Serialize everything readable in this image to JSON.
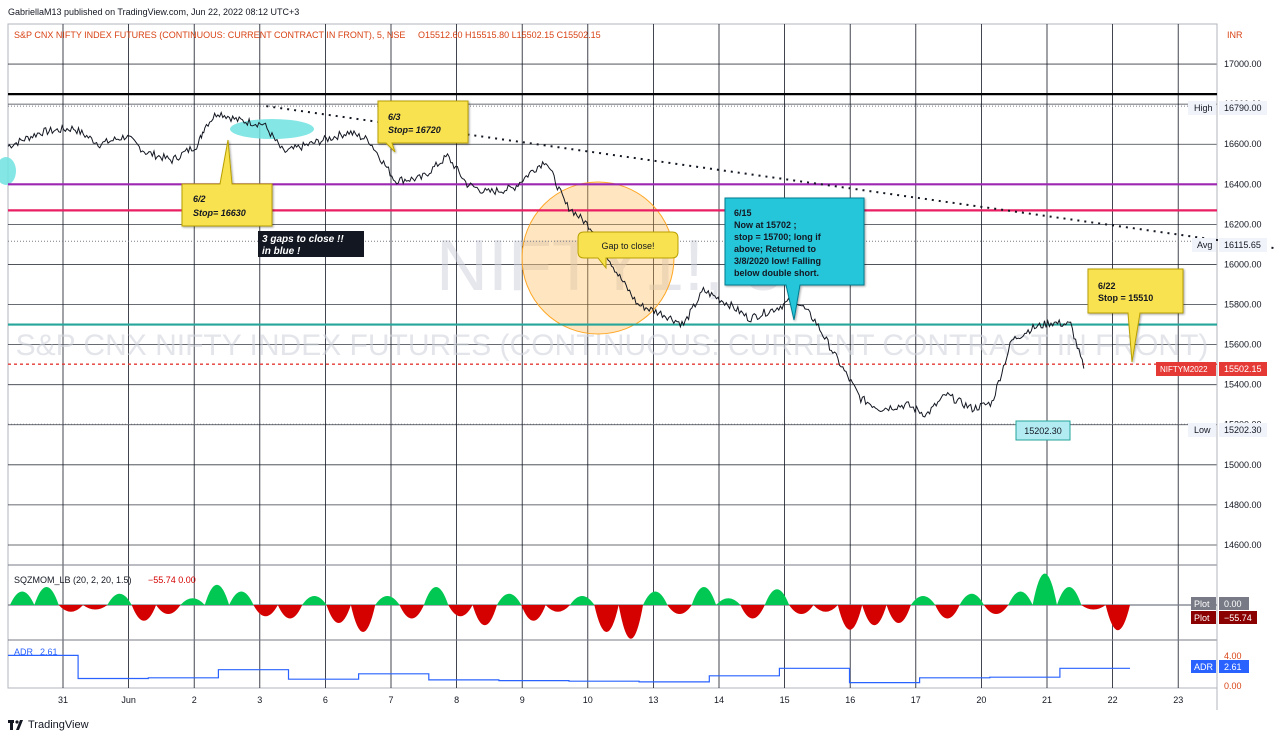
{
  "header": {
    "published": "GabriellaM13 published on TradingView.com, Jun 22, 2022 08:12 UTC+3",
    "symbol_line": "S&P CNX NIFTY INDEX FUTURES (CONTINUOUS: CURRENT CONTRACT IN FRONT), 5, NSE",
    "ohlc": "O15512.60  H15515.80  L15502.15  C15502.15"
  },
  "watermark": {
    "ticker": "NIFTY1!, 5",
    "description": "S&P CNX NIFTY INDEX FUTURES (CONTINUOUS: CURRENT CONTRACT IN FRONT)"
  },
  "currency": "INR",
  "footer_brand": "TradingView",
  "colors": {
    "price_line": "#131722",
    "resistance_black": "#000000",
    "purple_line": "#9c27b0",
    "red_line": "#e91e63",
    "teal_line": "#26a69a",
    "current_price": "#e53935",
    "callout_yellow": "#f9e250",
    "callout_cyan": "#26c6da",
    "gap_circle": "#ffb74d",
    "gap_ellipse": "#6fe3e0",
    "mom_green": "#00c853",
    "mom_red": "#d50000",
    "adr_blue": "#2962ff"
  },
  "chart_data": {
    "type": "line",
    "title": "S&P CNX NIFTY INDEX FUTURES (CONTINUOUS: CURRENT CONTRACT IN FRONT), 5, NSE",
    "ylim": [
      14500,
      17200
    ],
    "y_ticks": [
      "17000.00",
      "16800.00",
      "16600.00",
      "16400.00",
      "16200.00",
      "16000.00",
      "15800.00",
      "15600.00",
      "15400.00",
      "15200.00",
      "15000.00",
      "14800.00",
      "14600.00"
    ],
    "x_ticks": [
      "31",
      "Jun",
      "2",
      "3",
      "6",
      "7",
      "8",
      "9",
      "10",
      "13",
      "14",
      "15",
      "16",
      "17",
      "20",
      "21",
      "22",
      "23"
    ],
    "price_series": {
      "x": [
        0,
        0.5,
        1,
        1.4,
        1.8,
        2.1,
        2.5,
        2.9,
        3.0,
        3.2,
        3.5,
        3.9,
        4.2,
        4.6,
        5.0,
        5.2,
        5.5,
        5.9,
        6.3,
        6.7,
        7.0,
        7.3,
        7.7,
        8.0,
        8.2,
        8.5,
        8.9,
        9.0,
        9.3,
        9.6,
        10.0,
        10.3,
        10.6,
        11.0,
        11.3,
        11.7,
        12.0,
        12.3,
        12.6,
        13.0,
        13.3,
        13.7,
        14.0,
        14.3,
        14.7,
        15.0,
        15.3,
        15.6,
        15.9,
        16.2,
        16.4
      ],
      "y": [
        16590,
        16660,
        16680,
        16600,
        16640,
        16560,
        16520,
        16600,
        16690,
        16760,
        16720,
        16700,
        16560,
        16600,
        16640,
        16660,
        16620,
        16420,
        16430,
        16540,
        16400,
        16360,
        16380,
        16470,
        16520,
        16300,
        16180,
        16120,
        15950,
        15800,
        15750,
        15700,
        15870,
        15800,
        15730,
        15780,
        15830,
        15720,
        15550,
        15330,
        15280,
        15300,
        15250,
        15350,
        15280,
        15310,
        15620,
        15680,
        15710,
        15700,
        15480
      ]
    },
    "horizontal_levels": [
      {
        "name": "resistance",
        "value": 16850
      },
      {
        "name": "High",
        "value": 16790.0
      },
      {
        "name": "purple",
        "value": 16400
      },
      {
        "name": "red",
        "value": 16270
      },
      {
        "name": "Avg",
        "value": 16115.65
      },
      {
        "name": "teal",
        "value": 15700
      },
      {
        "name": "NIFTYM2022",
        "value": 15502.15
      },
      {
        "name": "Low",
        "value": 15202.3
      }
    ],
    "trendline": {
      "from": {
        "x": 3.1,
        "y": 16790
      },
      "to": {
        "x": 18.5,
        "y": 16080
      }
    },
    "price_labels": {
      "high_label": "High",
      "high_value": "16790.00",
      "avg_label": "Avg",
      "avg_value": "16115.65",
      "current_label": "NIFTYM2022",
      "current_value": "15502.15",
      "low_label": "Low",
      "low_value": "15202.30",
      "low_marker": "15202.30"
    },
    "annotations": [
      {
        "id": "a62",
        "text": "6/2\nStop= 16630"
      },
      {
        "id": "a63",
        "text": "6/3\nStop= 16720"
      },
      {
        "id": "a615",
        "text": "6/15\n  Now at 15702 ;\n stop = 15700; long if\n above; Returned to\n 3/8/2020 low! Falling\n below double short."
      },
      {
        "id": "a622",
        "text": "6/22\nStop = 15510"
      },
      {
        "id": "gaps",
        "text": "3 gaps to close !!\nin blue !"
      },
      {
        "id": "gap",
        "text": "Gap to close!"
      }
    ],
    "indicators": {
      "sqzmom": {
        "title": "SQZMOM_LB (20, 2, 20, 1.5)",
        "values_text": "−55.74  0.00",
        "plot_label": "Plot",
        "plot_value_1": "0.00",
        "plot_value_2": "−55.74",
        "values": [
          30,
          40,
          -15,
          -10,
          25,
          -35,
          -20,
          15,
          45,
          30,
          -25,
          -30,
          20,
          -40,
          -60,
          20,
          -30,
          40,
          -25,
          -45,
          25,
          -35,
          -15,
          20,
          -60,
          -75,
          30,
          -20,
          40,
          15,
          -30,
          35,
          -20,
          -15,
          -55,
          -45,
          -40,
          20,
          -30,
          25,
          -20,
          30,
          70,
          40,
          -10,
          -56
        ]
      },
      "adr": {
        "title": "ADR",
        "value": "2.61",
        "label": "ADR",
        "ticks": [
          "4.00",
          "0.00"
        ],
        "values": [
          4.5,
          1.1,
          1.2,
          2.4,
          1.0,
          1.8,
          0.9,
          0.8,
          0.7,
          0.6,
          1.5,
          2.6,
          0.5,
          1.2,
          1.3,
          2.61
        ]
      }
    }
  }
}
